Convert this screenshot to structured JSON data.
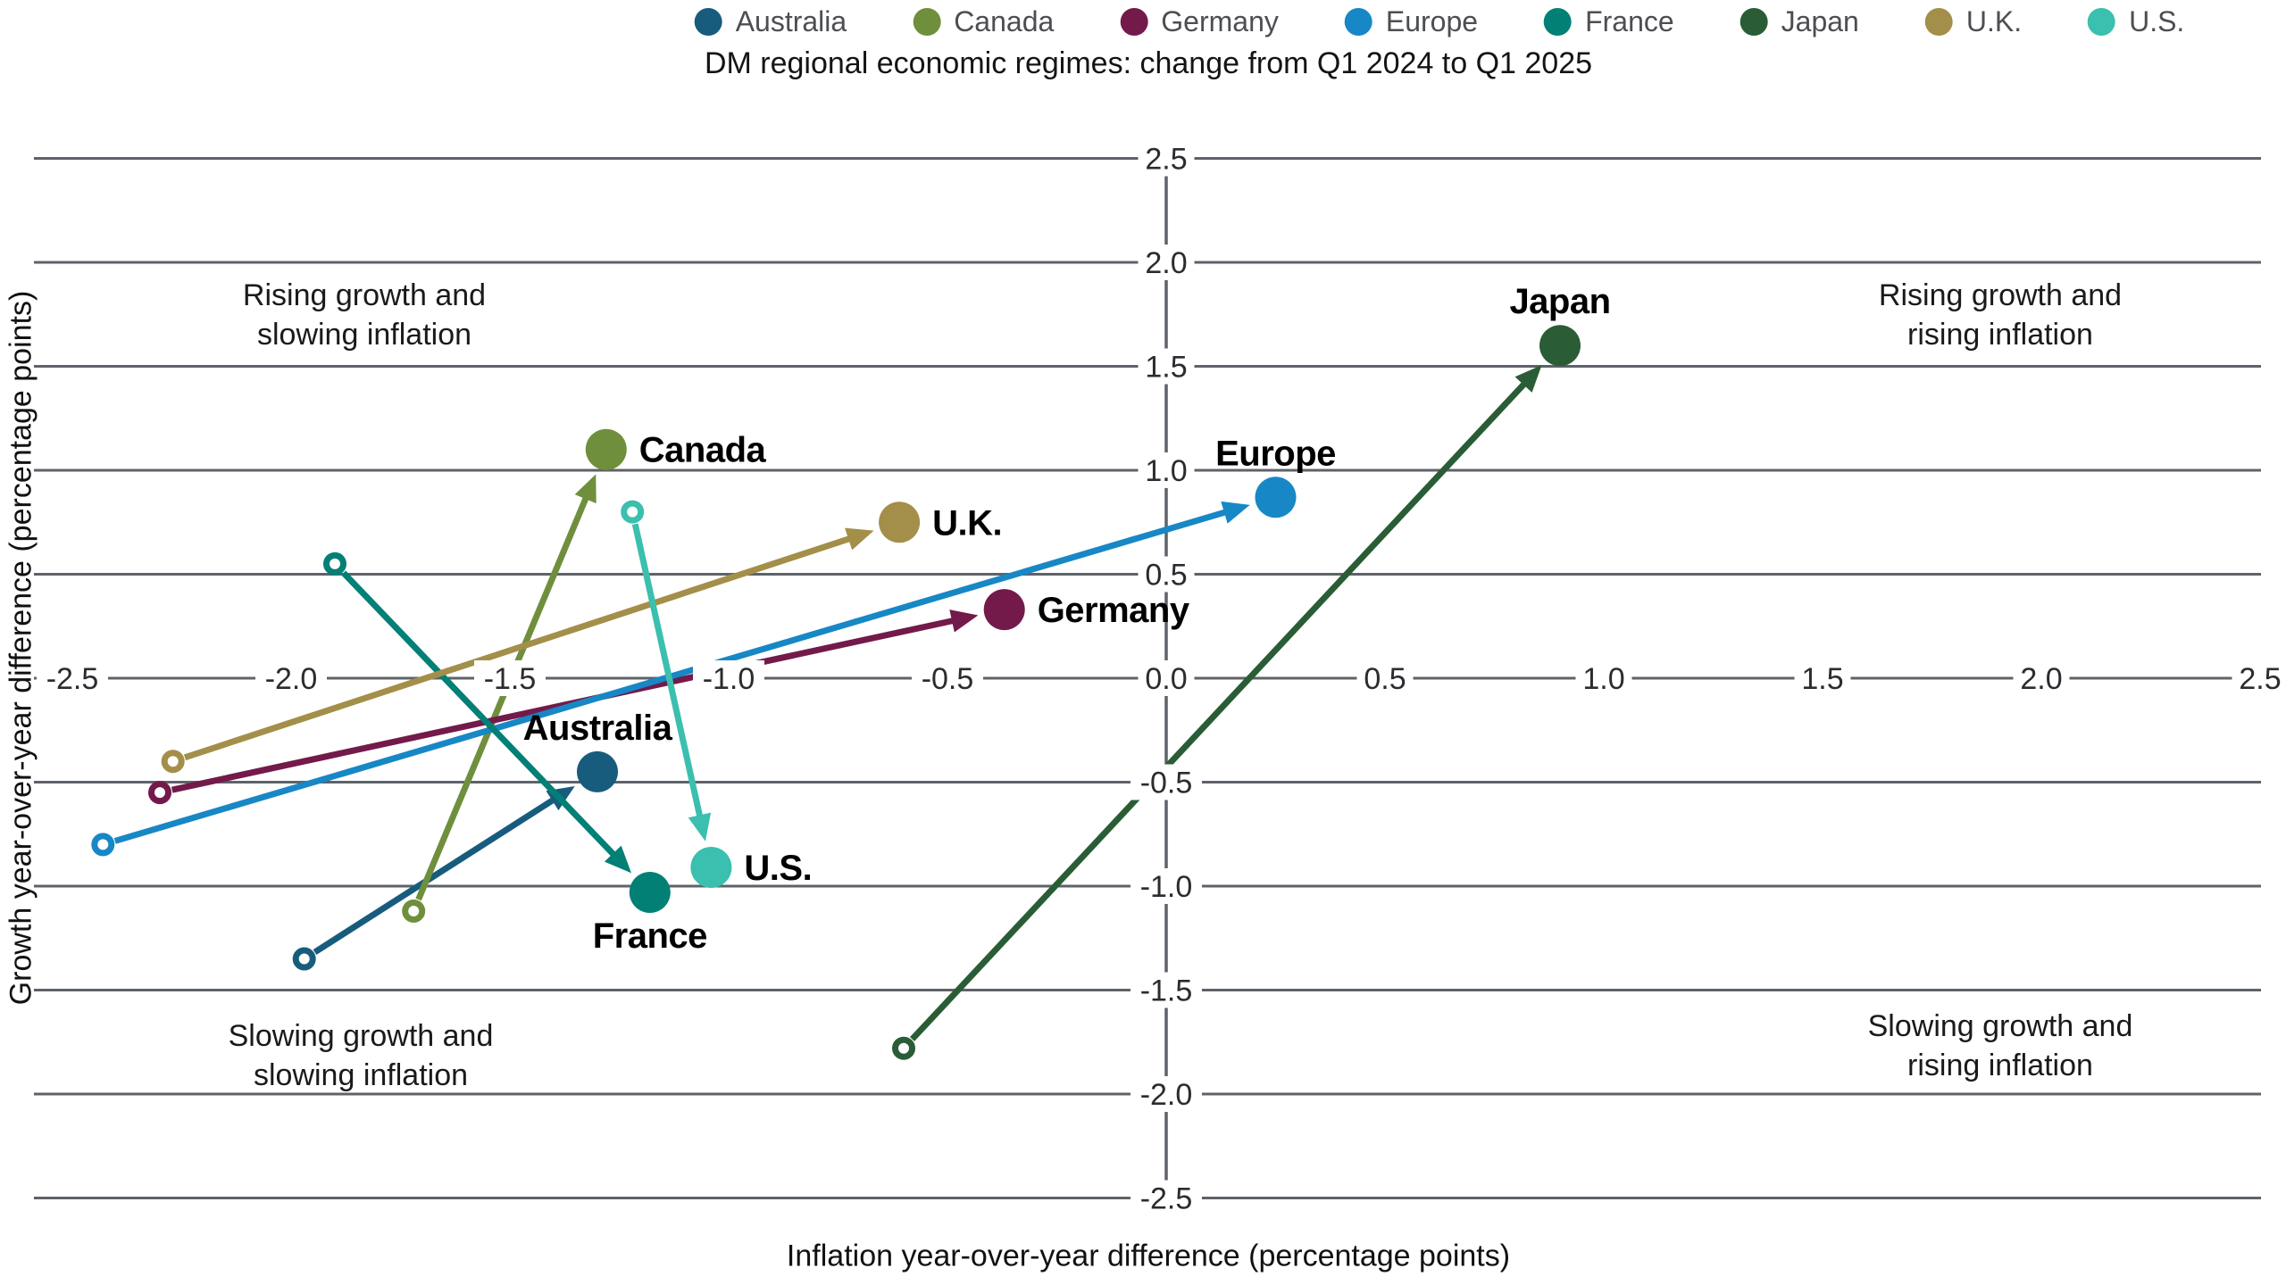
{
  "title": "DM regional economic regimes: change from Q1 2024 to Q1 2025",
  "axis_titles": {
    "x": "Inflation year-over-year difference (percentage points)",
    "y": "Growth year-over-year difference (percentage points)"
  },
  "quadrants": {
    "top_left": "Rising growth and\nslowing inflation",
    "top_right": "Rising growth and\nrising inflation",
    "bottom_left": "Slowing growth and\nslowing inflation",
    "bottom_right": "Slowing growth and\nrising inflation"
  },
  "colors": {
    "gridline": "#5e6269",
    "axis": "#5e6269",
    "tick_text": "#2a2c2f",
    "country_label_text": "#000000",
    "legend_text": "#4c4e52",
    "background": "#ffffff"
  },
  "chart_data": {
    "type": "scatter",
    "title": "DM regional economic regimes: change from Q1 2024 to Q1 2025",
    "xlabel": "Inflation year-over-year difference (percentage points)",
    "ylabel": "Growth year-over-year difference (percentage points)",
    "xlim": [
      -2.5,
      2.5
    ],
    "ylim": [
      -2.5,
      2.5
    ],
    "tick_step": 0.5,
    "grid": "horizontal-only",
    "legend_position": "top",
    "marker_semantics": {
      "open_circle": "Q1 2024 position",
      "filled_dot": "Q1 2025 position",
      "arrow": "direction of change from Q1 2024 to Q1 2025"
    },
    "series": [
      {
        "name": "Australia",
        "color": "#185c7d",
        "q1_2024": [
          -1.97,
          -1.35
        ],
        "q1_2025": [
          -1.3,
          -0.45
        ],
        "label_pos": "above"
      },
      {
        "name": "Canada",
        "color": "#6f8f3d",
        "q1_2024": [
          -1.72,
          -1.12
        ],
        "q1_2025": [
          -1.28,
          1.1
        ],
        "label_pos": "right"
      },
      {
        "name": "Germany",
        "color": "#731a4b",
        "q1_2024": [
          -2.3,
          -0.55
        ],
        "q1_2025": [
          -0.37,
          0.33
        ],
        "label_pos": "right"
      },
      {
        "name": "Europe",
        "color": "#1887c5",
        "q1_2024": [
          -2.43,
          -0.8
        ],
        "q1_2025": [
          0.25,
          0.87
        ],
        "label_pos": "above"
      },
      {
        "name": "France",
        "color": "#038076",
        "q1_2024": [
          -1.9,
          0.55
        ],
        "q1_2025": [
          -1.18,
          -1.03
        ],
        "label_pos": "below"
      },
      {
        "name": "Japan",
        "color": "#2a5d35",
        "q1_2024": [
          -0.6,
          -1.78
        ],
        "q1_2025": [
          0.9,
          1.6
        ],
        "label_pos": "above"
      },
      {
        "name": "U.K.",
        "color": "#a38f49",
        "q1_2024": [
          -2.27,
          -0.4
        ],
        "q1_2025": [
          -0.61,
          0.75
        ],
        "label_pos": "right"
      },
      {
        "name": "U.S.",
        "color": "#3bbfae",
        "q1_2024": [
          -1.22,
          0.8
        ],
        "q1_2025": [
          -1.04,
          -0.91
        ],
        "label_pos": "right"
      }
    ]
  }
}
